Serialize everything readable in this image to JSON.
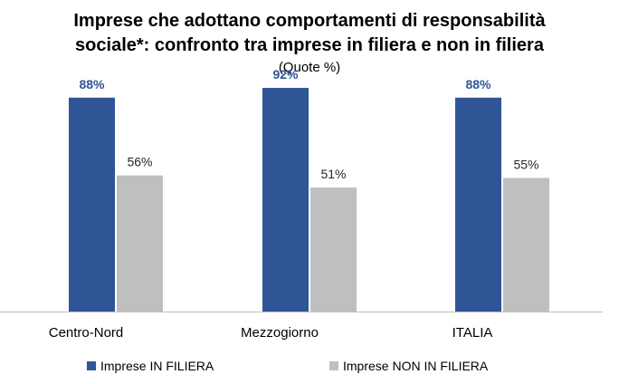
{
  "chart_data": {
    "type": "bar",
    "title": "Imprese che adottano comportamenti di responsabilità sociale*: confronto tra imprese in filiera e non in filiera",
    "title_lines": [
      "Imprese che adottano comportamenti di responsabilità",
      "sociale*: confronto tra imprese in filiera e non in filiera"
    ],
    "subtitle": "(Quote %)",
    "categories": [
      "Centro-Nord",
      "Mezzogiorno",
      "ITALIA"
    ],
    "series": [
      {
        "name": "Imprese IN FILIERA",
        "values": [
          88,
          92,
          88
        ],
        "color": "#2F5597",
        "label_color": "#2F5597",
        "label_bold": true
      },
      {
        "name": "Imprese NON IN FILIERA",
        "values": [
          56,
          51,
          55
        ],
        "color": "#BFBFBF",
        "label_color": "#262626",
        "label_bold": false
      }
    ],
    "value_suffix": "%",
    "ylim": [
      0,
      100
    ],
    "grid": false,
    "legend_position": "bottom"
  }
}
